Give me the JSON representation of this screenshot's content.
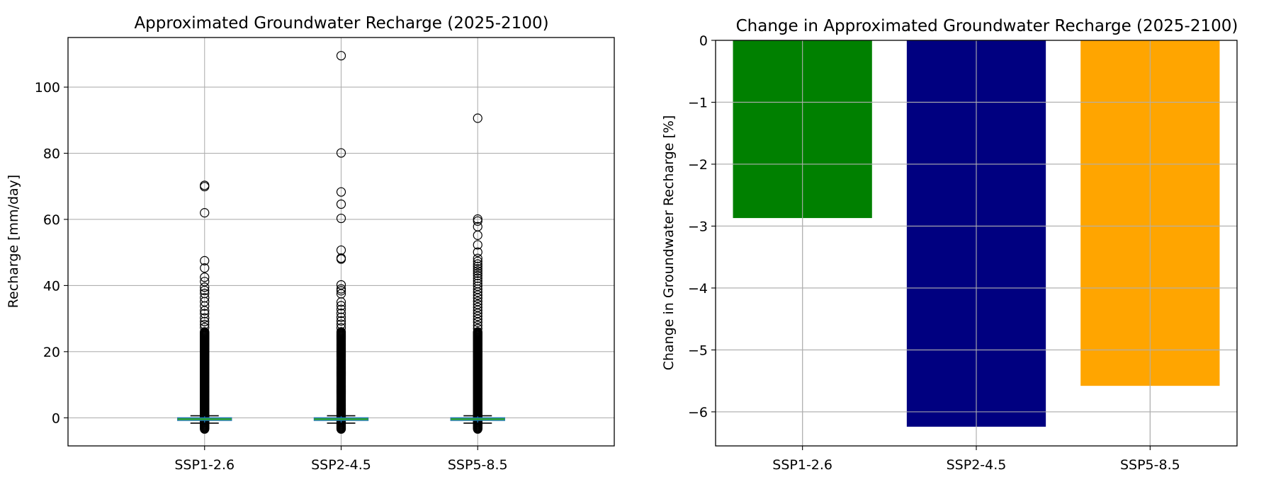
{
  "chart_data": [
    {
      "type": "box",
      "title": "Approximated Groundwater Recharge (2025-2100)",
      "xlabel": "",
      "ylabel": "Recharge [mm/day]",
      "ylim": [
        -8.5,
        115
      ],
      "yticks": [
        0,
        20,
        40,
        60,
        80,
        100
      ],
      "grid": true,
      "categories": [
        "SSP1-2.6",
        "SSP2-4.5",
        "SSP5-8.5"
      ],
      "series": [
        {
          "category": "SSP1-2.6",
          "q1": -0.8,
          "median": -0.4,
          "q3": 0.0,
          "whisker_low": -1.6,
          "whisker_high": 0.6,
          "outlier_dense_range": [
            -3.4,
            26
          ],
          "outliers": [
            70.3,
            69.9,
            62,
            47.5,
            45.3,
            42.5,
            41.2,
            39.5,
            38.5,
            37.6,
            36.3,
            35.1,
            33.8,
            32.4,
            31.5,
            30.2,
            29.1,
            28.2,
            27.3
          ]
        },
        {
          "category": "SSP2-4.5",
          "q1": -0.8,
          "median": -0.4,
          "q3": 0.0,
          "whisker_low": -1.6,
          "whisker_high": 0.6,
          "outlier_dense_range": [
            -3.4,
            26
          ],
          "outliers": [
            109.5,
            80.1,
            68.3,
            64.6,
            60.3,
            50.7,
            48.3,
            48.0,
            40.2,
            39.0,
            38.4,
            37.5,
            35.0,
            33.9,
            32.8,
            31.6,
            30.4,
            29.3,
            28.3,
            27.2
          ]
        },
        {
          "category": "SSP5-8.5",
          "q1": -0.8,
          "median": -0.4,
          "q3": 0.0,
          "whisker_low": -1.6,
          "whisker_high": 0.6,
          "outlier_dense_range": [
            -3.4,
            26
          ],
          "outliers": [
            90.6,
            60.1,
            59.5,
            57.8,
            55.2,
            52.3,
            50.1,
            48.2,
            47.3,
            46.5,
            45.8,
            45.1,
            44.4,
            43.7,
            43.0,
            42.2,
            41.4,
            40.6,
            39.8,
            38.9,
            38.0,
            37.1,
            36.2,
            35.2,
            34.3,
            33.4,
            32.5,
            31.6,
            30.7,
            29.8,
            28.9,
            27.9,
            27.0
          ]
        }
      ],
      "box_color": "#1f77b4",
      "median_color": "#2ca02c"
    },
    {
      "type": "bar",
      "title": "Change in Approximated Groundwater Recharge (2025-2100)",
      "xlabel": "",
      "ylabel": "Change in Groundwater Recharge [%]",
      "ylim": [
        -6.55,
        0
      ],
      "yticks": [
        0,
        -1,
        -2,
        -3,
        -4,
        -5,
        -6
      ],
      "grid": true,
      "categories": [
        "SSP1-2.6",
        "SSP2-4.5",
        "SSP5-8.5"
      ],
      "values": [
        -2.87,
        -6.24,
        -5.58
      ],
      "colors": [
        "#008000",
        "#000080",
        "#ffa500"
      ]
    }
  ]
}
